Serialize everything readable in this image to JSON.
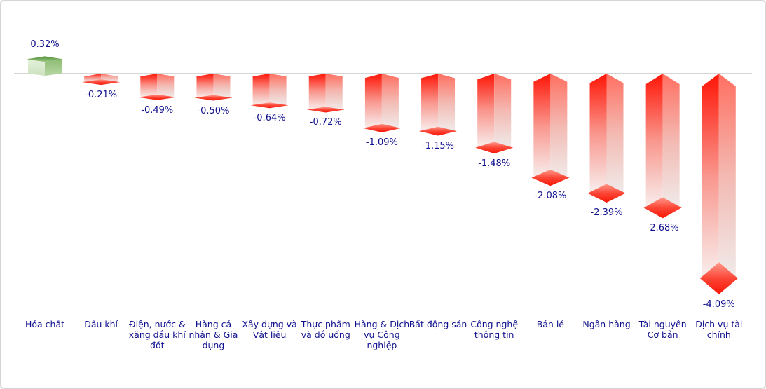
{
  "chart_data": {
    "type": "bar",
    "title": "",
    "unit": "%",
    "orientation": "vertical-3d",
    "grid": false,
    "baseline": 0,
    "ylim": [
      -4.5,
      0.6
    ],
    "legend": "none",
    "categories": [
      "Hóa chất",
      "Dầu khí",
      "Điện, nước & xăng dầu khí đốt",
      "Hàng cá nhân & Gia dụng",
      "Xây dựng và Vật liệu",
      "Thực phẩm và đồ uống",
      "Hàng & Dịch vụ Công nghiệp",
      "Bất động sản",
      "Công nghệ thông tin",
      "Bán lẻ",
      "Ngân hàng",
      "Tài nguyên Cơ bản",
      "Dịch vụ tài chính"
    ],
    "category_lines": [
      [
        "Hóa chất"
      ],
      [
        "Dầu khí"
      ],
      [
        "Điện, nước &",
        "xăng dầu khí",
        "đốt"
      ],
      [
        "Hàng cá",
        "nhân & Gia",
        "dụng"
      ],
      [
        "Xây dựng và",
        "Vật liệu"
      ],
      [
        "Thực phẩm",
        "và đồ uống"
      ],
      [
        "Hàng & Dịch",
        "vụ Công",
        "nghiệp"
      ],
      [
        "Bất động sản"
      ],
      [
        "Công nghệ",
        "thông tin"
      ],
      [
        "Bán lẻ"
      ],
      [
        "Ngân hàng"
      ],
      [
        "Tài nguyên",
        "Cơ bản"
      ],
      [
        "Dịch vụ tài",
        "chính"
      ]
    ],
    "values": [
      0.32,
      -0.21,
      -0.49,
      -0.5,
      -0.64,
      -0.72,
      -1.09,
      -1.15,
      -1.48,
      -2.08,
      -2.39,
      -2.68,
      -4.09
    ],
    "value_labels": [
      "0.32%",
      "-0.21%",
      "-0.49%",
      "-0.50%",
      "-0.64%",
      "-0.72%",
      "-1.09%",
      "-1.15%",
      "-1.48%",
      "-2.08%",
      "-2.39%",
      "-2.68%",
      "-4.09%"
    ],
    "colors": {
      "text": "#10108e",
      "axis_line": "#c9c9c9",
      "canvas_border": "#d5d5d5",
      "background": "#ffffff",
      "negative": {
        "face_left": [
          "#ff1506",
          "#f9968d",
          "#f8efee"
        ],
        "face_right": [
          "#ff6f61",
          "#f3b9b2",
          "#f0ebea"
        ],
        "bottom_cap": [
          "#ff9a8c",
          "#fc4636",
          "#f91505"
        ]
      },
      "positive": {
        "face_left": [
          "#e8f3e1",
          "#dcecd2",
          "#cfe4c3"
        ],
        "face_right": [
          "#85b96a",
          "#9cc584",
          "#b2d49e"
        ],
        "top_cap": [
          "#4f9038",
          "#79ad5e",
          "#a3cb8d"
        ]
      }
    }
  }
}
